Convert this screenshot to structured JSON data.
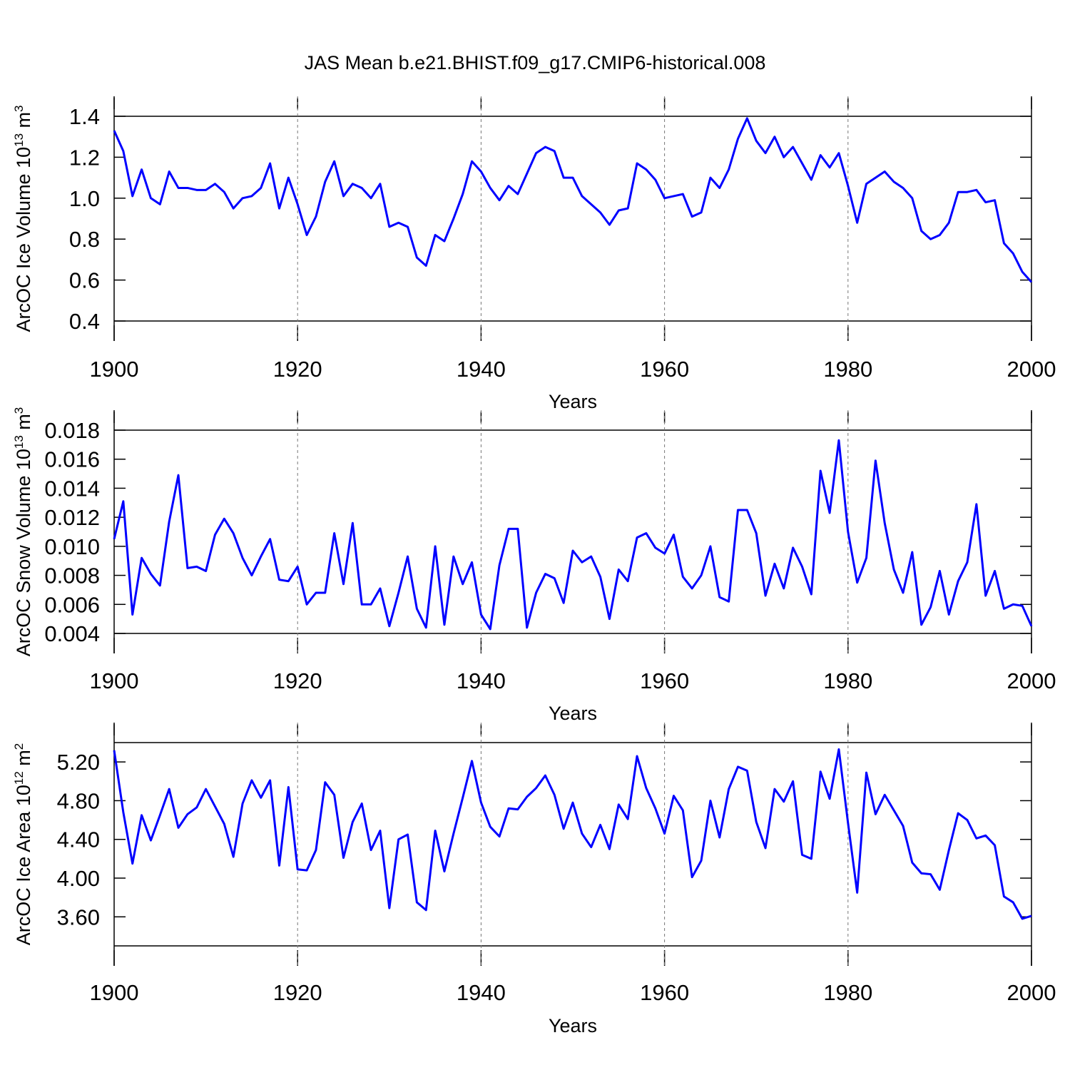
{
  "chart_data": [
    {
      "type": "line",
      "title": "JAS Mean b.e21.BHIST.f09_g17.CMIP6-historical.008",
      "ylabel": [
        "ArcOC Ice Volume 10",
        "13",
        " m",
        "3"
      ],
      "xlabel": "Years",
      "color": "#0000ff",
      "grid": "x",
      "xlim": [
        1900,
        2000
      ],
      "xticks": [
        1900,
        1920,
        1940,
        1960,
        1980,
        2000
      ],
      "ylim": [
        0.4,
        1.4
      ],
      "yticks": [
        0.4,
        0.6,
        0.8,
        {
          "value": 1,
          "label": "1.0"
        },
        1.2,
        1.4
      ],
      "x": [
        1900,
        1901,
        1902,
        1903,
        1904,
        1905,
        1906,
        1907,
        1908,
        1909,
        1910,
        1911,
        1912,
        1913,
        1914,
        1915,
        1916,
        1917,
        1918,
        1919,
        1920,
        1921,
        1922,
        1923,
        1924,
        1925,
        1926,
        1927,
        1928,
        1929,
        1930,
        1931,
        1932,
        1933,
        1934,
        1935,
        1936,
        1937,
        1938,
        1939,
        1940,
        1941,
        1942,
        1943,
        1944,
        1945,
        1946,
        1947,
        1948,
        1949,
        1950,
        1951,
        1952,
        1953,
        1954,
        1955,
        1956,
        1957,
        1958,
        1959,
        1960,
        1961,
        1962,
        1963,
        1964,
        1965,
        1966,
        1967,
        1968,
        1969,
        1970,
        1971,
        1972,
        1973,
        1974,
        1975,
        1976,
        1977,
        1978,
        1979,
        1980,
        1981,
        1982,
        1983,
        1984,
        1985,
        1986,
        1987,
        1988,
        1989,
        1990,
        1991,
        1992,
        1993,
        1994,
        1995,
        1996,
        1997,
        1998,
        1999,
        2000
      ],
      "values": [
        1.33,
        1.23,
        1.01,
        1.14,
        1.0,
        0.97,
        1.13,
        1.05,
        1.05,
        1.04,
        1.04,
        1.07,
        1.03,
        0.95,
        1.0,
        1.01,
        1.05,
        1.17,
        0.95,
        1.1,
        0.97,
        0.82,
        0.91,
        1.08,
        1.18,
        1.01,
        1.07,
        1.05,
        1.0,
        1.07,
        0.86,
        0.88,
        0.86,
        0.71,
        0.67,
        0.82,
        0.79,
        0.9,
        1.02,
        1.18,
        1.13,
        1.05,
        0.99,
        1.06,
        1.02,
        1.12,
        1.22,
        1.25,
        1.23,
        1.1,
        1.1,
        1.01,
        0.97,
        0.93,
        0.87,
        0.94,
        0.95,
        1.17,
        1.14,
        1.09,
        1.0,
        1.01,
        1.02,
        0.91,
        0.93,
        1.1,
        1.05,
        1.14,
        1.29,
        1.39,
        1.28,
        1.22,
        1.3,
        1.2,
        1.25,
        1.17,
        1.09,
        1.21,
        1.15,
        1.22,
        1.06,
        0.88,
        1.07,
        1.1,
        1.13,
        1.08,
        1.05,
        1.0,
        0.84,
        0.8,
        0.82,
        0.88,
        1.03,
        1.03,
        1.04,
        0.98,
        0.99,
        0.78,
        0.73,
        0.64,
        0.59
      ]
    },
    {
      "type": "line",
      "ylabel": [
        "ArcOC Snow Volume 10",
        "13",
        " m",
        "3"
      ],
      "xlabel": "Years",
      "color": "#0000ff",
      "grid": "x",
      "xlim": [
        1900,
        2000
      ],
      "xticks": [
        1900,
        1920,
        1940,
        1960,
        1980,
        2000
      ],
      "ylim": [
        0.004,
        0.018
      ],
      "yticks": [
        0.004,
        0.006,
        0.008,
        {
          "value": 0.01,
          "label": "0.010"
        },
        0.012,
        0.014,
        0.016,
        0.018
      ],
      "x": [
        1900,
        1901,
        1902,
        1903,
        1904,
        1905,
        1906,
        1907,
        1908,
        1909,
        1910,
        1911,
        1912,
        1913,
        1914,
        1915,
        1916,
        1917,
        1918,
        1919,
        1920,
        1921,
        1922,
        1923,
        1924,
        1925,
        1926,
        1927,
        1928,
        1929,
        1930,
        1931,
        1932,
        1933,
        1934,
        1935,
        1936,
        1937,
        1938,
        1939,
        1940,
        1941,
        1942,
        1943,
        1944,
        1945,
        1946,
        1947,
        1948,
        1949,
        1950,
        1951,
        1952,
        1953,
        1954,
        1955,
        1956,
        1957,
        1958,
        1959,
        1960,
        1961,
        1962,
        1963,
        1964,
        1965,
        1966,
        1967,
        1968,
        1969,
        1970,
        1971,
        1972,
        1973,
        1974,
        1975,
        1976,
        1977,
        1978,
        1979,
        1980,
        1981,
        1982,
        1983,
        1984,
        1985,
        1986,
        1987,
        1988,
        1989,
        1990,
        1991,
        1992,
        1993,
        1994,
        1995,
        1996,
        1997,
        1998,
        1999,
        2000
      ],
      "values": [
        0.0105,
        0.0131,
        0.0053,
        0.0092,
        0.0081,
        0.0073,
        0.0117,
        0.0149,
        0.0085,
        0.0086,
        0.0083,
        0.0108,
        0.0119,
        0.0109,
        0.0092,
        0.008,
        0.0093,
        0.0105,
        0.0077,
        0.0076,
        0.0086,
        0.006,
        0.0068,
        0.0068,
        0.0109,
        0.0074,
        0.0116,
        0.006,
        0.006,
        0.0071,
        0.0045,
        0.0068,
        0.0093,
        0.0057,
        0.0044,
        0.01,
        0.0046,
        0.0093,
        0.0074,
        0.0089,
        0.0053,
        0.0043,
        0.0087,
        0.0112,
        0.0112,
        0.0044,
        0.0068,
        0.0081,
        0.0078,
        0.0061,
        0.0097,
        0.0089,
        0.0093,
        0.0079,
        0.005,
        0.0084,
        0.0076,
        0.0106,
        0.0109,
        0.0099,
        0.0095,
        0.0108,
        0.0079,
        0.0071,
        0.008,
        0.01,
        0.0065,
        0.0062,
        0.0125,
        0.0125,
        0.0109,
        0.0066,
        0.0088,
        0.0071,
        0.0099,
        0.0086,
        0.0067,
        0.0152,
        0.0123,
        0.0173,
        0.011,
        0.0075,
        0.0092,
        0.0159,
        0.0116,
        0.0084,
        0.0068,
        0.0096,
        0.0046,
        0.0058,
        0.0083,
        0.0053,
        0.0076,
        0.0089,
        0.0129,
        0.0066,
        0.0083,
        0.0057,
        0.006,
        0.0059,
        0.0045
      ]
    },
    {
      "type": "line",
      "ylabel": [
        "ArcOC Ice Area 10",
        "12",
        " m",
        "2"
      ],
      "xlabel": "Years",
      "color": "#0000ff",
      "grid": "x",
      "xlim": [
        1900,
        2000
      ],
      "xticks": [
        1900,
        1920,
        1940,
        1960,
        1980,
        2000
      ],
      "ylim": [
        3.3,
        5.4
      ],
      "yticks": [
        {
          "value": 3.6,
          "label": "3.60"
        },
        {
          "value": 4,
          "label": "4.00"
        },
        {
          "value": 4.4,
          "label": "4.40"
        },
        {
          "value": 4.8,
          "label": "4.80"
        },
        {
          "value": 5.2,
          "label": "5.20"
        }
      ],
      "x": [
        1900,
        1901,
        1902,
        1903,
        1904,
        1905,
        1906,
        1907,
        1908,
        1909,
        1910,
        1911,
        1912,
        1913,
        1914,
        1915,
        1916,
        1917,
        1918,
        1919,
        1920,
        1921,
        1922,
        1923,
        1924,
        1925,
        1926,
        1927,
        1928,
        1929,
        1930,
        1931,
        1932,
        1933,
        1934,
        1935,
        1936,
        1937,
        1938,
        1939,
        1940,
        1941,
        1942,
        1943,
        1944,
        1945,
        1946,
        1947,
        1948,
        1949,
        1950,
        1951,
        1952,
        1953,
        1954,
        1955,
        1956,
        1957,
        1958,
        1959,
        1960,
        1961,
        1962,
        1963,
        1964,
        1965,
        1966,
        1967,
        1968,
        1969,
        1970,
        1971,
        1972,
        1973,
        1974,
        1975,
        1976,
        1977,
        1978,
        1979,
        1980,
        1981,
        1982,
        1983,
        1984,
        1985,
        1986,
        1987,
        1988,
        1989,
        1990,
        1991,
        1992,
        1993,
        1994,
        1995,
        1996,
        1997,
        1998,
        1999,
        2000
      ],
      "values": [
        5.32,
        4.68,
        4.15,
        4.65,
        4.39,
        4.65,
        4.92,
        4.52,
        4.66,
        4.73,
        4.92,
        4.74,
        4.56,
        4.22,
        4.77,
        5.01,
        4.83,
        5.01,
        4.13,
        4.94,
        4.09,
        4.08,
        4.29,
        4.99,
        4.86,
        4.21,
        4.58,
        4.77,
        4.29,
        4.49,
        3.69,
        4.4,
        4.45,
        3.75,
        3.67,
        4.49,
        4.07,
        4.46,
        4.83,
        5.21,
        4.78,
        4.53,
        4.43,
        4.72,
        4.71,
        4.84,
        4.93,
        5.06,
        4.86,
        4.51,
        4.78,
        4.46,
        4.32,
        4.55,
        4.3,
        4.76,
        4.61,
        5.26,
        4.93,
        4.72,
        4.46,
        4.85,
        4.7,
        4.01,
        4.18,
        4.8,
        4.42,
        4.92,
        5.15,
        5.11,
        4.58,
        4.31,
        4.92,
        4.79,
        5.0,
        4.24,
        4.2,
        5.1,
        4.82,
        5.33,
        4.57,
        3.85,
        5.09,
        4.66,
        4.86,
        4.7,
        4.54,
        4.16,
        4.05,
        4.04,
        3.88,
        4.29,
        4.67,
        4.6,
        4.41,
        4.44,
        4.34,
        3.81,
        3.75,
        3.58,
        3.61
      ]
    }
  ]
}
